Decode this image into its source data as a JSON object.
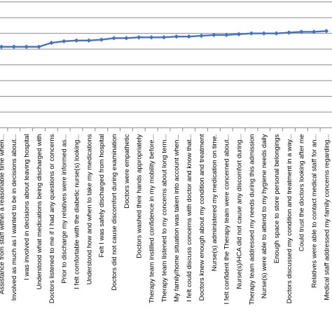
{
  "chart_data": {
    "type": "line",
    "title": "",
    "xlabel": "",
    "ylabel": "",
    "categories": [
      "Assistance from staff within a reasonable time when...",
      "Involved as much as I wanted to be in decisions about...",
      "I was involved in decisions about leaving hospital",
      "Understood what medications being discharged with",
      "Doctors listened to me if I had any questions or concerns",
      "Prior to discharge my relatives were informed as...",
      "I felt comfortable with the diabetic nurse(s) looking...",
      "Understood how and when to take my medications",
      "Felt I was safely discharged from hospital",
      "Doctors did not cause discomfort during examination",
      "Doctors were empathetic",
      "Doctors washed their hands appropriately",
      "Therapy team instilled confidence in my mobility before...",
      "Therapy team listened to my concerns about long term...",
      "My family/home situation was taken into account when...",
      "I felt could discuss concerns with doctor and know that...",
      "Doctors knew enough about my condition and treatment",
      "Nurse(s) administered my medication on time.",
      "I felt confident the Therapy team were concerned about...",
      "Nurse(s)/HCA did not cause any discomfort during...",
      "Therapy team addressed my needs during this admission",
      "Nurse(s) were able to attend to my hygiene needs daily",
      "Enough space to store personal belongings",
      "Doctors discussed my condition and treatment in a way...",
      "Could trust the doctors looking after me",
      "Relatives were able to contact medical staff for an...",
      "Medical staff addressed my family concerns regarding..."
    ],
    "series": [
      {
        "color": "#4472c4",
        "values": [
          5.15,
          5.15,
          5.15,
          5.15,
          5.4,
          5.5,
          5.55,
          5.55,
          5.6,
          5.7,
          5.7,
          5.75,
          5.75,
          5.75,
          5.8,
          5.8,
          5.85,
          5.9,
          5.9,
          5.95,
          6.0,
          6.0,
          6.0,
          6.05,
          6.1,
          6.1,
          6.15
        ]
      }
    ],
    "y_gridline_step": 1,
    "visible_y_range": [
      -7.1,
      8.6
    ],
    "grid": true,
    "legend": "none",
    "colors": {
      "gridline": "#8c8c8c",
      "axis": "#8c8c8c",
      "label": "#000000"
    }
  }
}
